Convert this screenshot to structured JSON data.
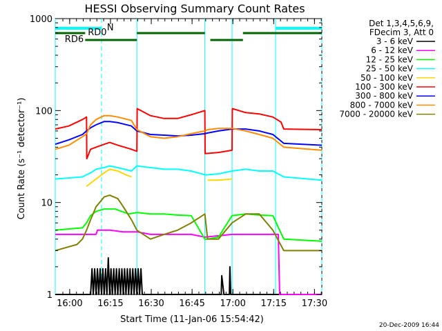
{
  "chart_data": {
    "type": "line",
    "title": "HESSI Observing Summary Count Rates",
    "xlabel": "Start Time (11-Jan-06 15:54:42)",
    "ylabel": "Count Rate (s⁻¹ detector⁻¹)",
    "yscale": "log",
    "ylim": [
      1,
      1000
    ],
    "xlim_minutes": [
      0,
      98
    ],
    "x_ticks": [
      {
        "min": 5.3,
        "label": "16:00"
      },
      {
        "min": 20.3,
        "label": "16:15"
      },
      {
        "min": 35.3,
        "label": "16:30"
      },
      {
        "min": 50.3,
        "label": "16:45"
      },
      {
        "min": 65.3,
        "label": "17:00"
      },
      {
        "min": 80.3,
        "label": "17:15"
      },
      {
        "min": 95.3,
        "label": "17:30"
      }
    ],
    "y_ticks": [
      {
        "value": 1,
        "label": "1"
      },
      {
        "value": 10,
        "label": "10"
      },
      {
        "value": 100,
        "label": "100"
      },
      {
        "value": 1000,
        "label": "1000"
      }
    ],
    "legend_header": [
      "Det 1,3,4,5,6,9,",
      "FDecim 3, Att 0"
    ],
    "legend_position": "right",
    "series": [
      {
        "name": "3 - 6 keV",
        "color": "#000000",
        "x": [
          0,
          13,
          13.5,
          14,
          14.5,
          15,
          15.5,
          16,
          16.5,
          17,
          17.5,
          18,
          18.5,
          19,
          19.5,
          20,
          20.5,
          21,
          21.5,
          22,
          22.5,
          23,
          23.5,
          24,
          24.5,
          25,
          25.5,
          26,
          26.5,
          27,
          27.5,
          28,
          28.5,
          29,
          29.5,
          30,
          30.5,
          31,
          31.5,
          32,
          60,
          61,
          61.2,
          62,
          62.2,
          62.5,
          64,
          64.2,
          64.5,
          65,
          98
        ],
        "values": [
          1,
          1,
          1.9,
          1,
          1.9,
          1,
          1.9,
          1,
          1.9,
          1,
          1.9,
          1,
          1.9,
          1,
          2.5,
          1,
          1.9,
          1,
          1.9,
          1,
          1.9,
          1,
          1.9,
          1,
          1.9,
          1,
          1.9,
          1,
          1.9,
          1,
          1.9,
          1,
          1.9,
          1,
          1.9,
          1,
          1.9,
          1,
          1.9,
          1,
          1,
          1,
          1.6,
          1,
          1,
          1,
          1,
          2,
          1,
          1,
          1
        ]
      },
      {
        "name": "6 - 12 keV",
        "color": "#ff00ff",
        "x": [
          0,
          15,
          15.5,
          20,
          25,
          30,
          35,
          40,
          45,
          50,
          55,
          65,
          70,
          75,
          80,
          82,
          82.5,
          98
        ],
        "values": [
          4.5,
          4.5,
          5,
          5,
          4.8,
          4.8,
          4.5,
          4.5,
          4.5,
          4.5,
          4.2,
          4.5,
          4.5,
          4.5,
          4.5,
          4.5,
          1,
          1
        ]
      },
      {
        "name": "12 - 25 keV",
        "color": "#00ff00",
        "x": [
          0,
          10,
          11.5,
          13,
          15,
          18,
          22,
          27,
          30,
          35,
          40,
          45,
          50,
          55,
          56,
          60,
          65,
          70,
          75,
          80,
          84,
          98
        ],
        "values": [
          5,
          5.3,
          6,
          7.2,
          8,
          8.5,
          8.5,
          7.5,
          7.8,
          7.5,
          7.5,
          7.3,
          7.2,
          4,
          4,
          4.2,
          7.2,
          7.5,
          7.3,
          7.2,
          4,
          3.8
        ]
      },
      {
        "name": "25 - 50 keV",
        "color": "#00ffff",
        "x": [
          0,
          10,
          11.5,
          13,
          15,
          18,
          20,
          23,
          28,
          30,
          35,
          40,
          45,
          50,
          55,
          56,
          60,
          65,
          70,
          75,
          80,
          84,
          98
        ],
        "values": [
          18,
          19,
          20,
          21,
          23,
          24,
          25,
          24,
          22,
          25,
          24,
          23,
          23,
          22,
          20,
          20,
          20.5,
          22,
          23,
          22,
          22,
          19,
          17.5
        ]
      },
      {
        "name": "50 - 100 keV",
        "color": "#ffd700",
        "x": [
          0,
          11,
          11.5,
          15,
          18,
          20,
          23,
          26,
          28,
          55,
          56,
          60,
          65,
          66,
          70,
          75,
          80,
          84,
          98
        ],
        "values": [
          null,
          null,
          15,
          18,
          21,
          23,
          22,
          20,
          19,
          null,
          17.5,
          17.5,
          18,
          null,
          null,
          null,
          null,
          null,
          null
        ]
      },
      {
        "name": "100 - 300 keV",
        "color": "#ff0000",
        "x": [
          0,
          5,
          10,
          11.5,
          11.6,
          13,
          15,
          18,
          20,
          23,
          28,
          30,
          30.1,
          35,
          40,
          45,
          50,
          55,
          55.1,
          60,
          65,
          65.1,
          70,
          75,
          80,
          83,
          84,
          98
        ],
        "values": [
          63,
          68,
          80,
          85,
          30,
          38,
          40,
          43,
          45,
          42,
          38,
          36,
          105,
          88,
          82,
          82,
          90,
          100,
          34,
          35,
          37,
          105,
          95,
          92,
          85,
          75,
          63,
          62
        ]
      },
      {
        "name": "300 - 800 keV",
        "color": "#0000ff",
        "x": [
          0,
          5,
          10,
          11.5,
          13,
          15,
          18,
          20,
          23,
          28,
          30,
          35,
          40,
          45,
          50,
          55,
          56,
          60,
          65,
          70,
          75,
          80,
          84,
          98
        ],
        "values": [
          43,
          48,
          55,
          60,
          65,
          70,
          76,
          76,
          74,
          68,
          60,
          55,
          54,
          53,
          54,
          56,
          57,
          60,
          63,
          63,
          60,
          55,
          44,
          42
        ]
      },
      {
        "name": "800 - 7000 keV",
        "color": "#ff8c00",
        "x": [
          0,
          5,
          10,
          11.5,
          13,
          15,
          18,
          20,
          23,
          28,
          30,
          35,
          40,
          45,
          50,
          55,
          56,
          60,
          65,
          70,
          75,
          80,
          84,
          98
        ],
        "values": [
          38,
          42,
          52,
          56,
          70,
          80,
          88,
          88,
          85,
          78,
          62,
          52,
          50,
          52,
          56,
          60,
          62,
          64,
          64,
          60,
          55,
          50,
          40,
          37
        ]
      },
      {
        "name": "7000 - 20000 keV",
        "color": "#808000",
        "x": [
          0,
          8,
          10,
          11.5,
          13,
          15,
          18,
          20,
          23,
          25,
          28,
          30,
          35,
          40,
          45,
          50,
          55,
          56,
          60,
          65,
          70,
          75,
          80,
          84,
          98
        ],
        "values": [
          3,
          3.5,
          4,
          5,
          6.5,
          9,
          11.5,
          12,
          11,
          9,
          6.5,
          5,
          4,
          4.5,
          5,
          6,
          7.5,
          4,
          4,
          6,
          7.5,
          7.5,
          5,
          3,
          3
        ]
      }
    ],
    "annotations": [
      {
        "text": "N",
        "color": "#00ffff"
      },
      {
        "text": "RD0",
        "color": "#006400"
      },
      {
        "text": "RD6",
        "color": "#006400"
      }
    ],
    "grid": false
  },
  "footer_date": "20-Dec-2009 16:44"
}
